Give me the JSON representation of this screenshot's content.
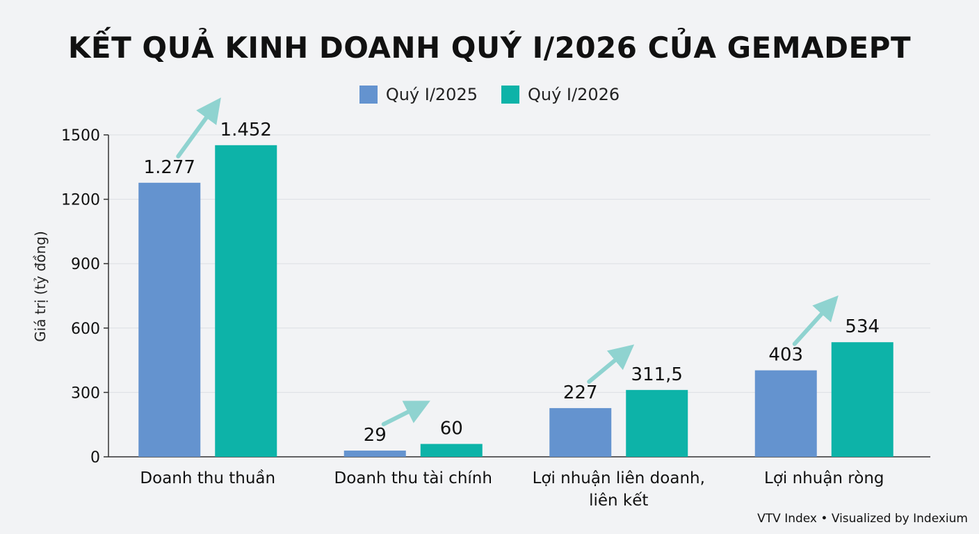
{
  "title": "KẾT QUẢ KINH DOANH QUÝ I/2026 CỦA GEMADEPT",
  "source": "VTV Index • Visualized by Indexium",
  "colors": {
    "q2025": "#6493cf",
    "q2026": "#0db3a8",
    "arrow": "#8fd3d0",
    "grid": "#dcdfe4",
    "axis": "#333333"
  },
  "chart_data": {
    "type": "bar",
    "title": "KẾT QUẢ KINH DOANH QUÝ I/2026 CỦA GEMADEPT",
    "xlabel": "",
    "ylabel": "Giá trị (tỷ đồng)",
    "ylim": [
      0,
      1500
    ],
    "yticks": [
      0,
      300,
      600,
      900,
      1200,
      1500
    ],
    "grid": true,
    "legend_position": "top-center",
    "categories": [
      [
        "Doanh thu thuần"
      ],
      [
        "Doanh thu tài chính"
      ],
      [
        "Lợi nhuận liên doanh,",
        "liên kết"
      ],
      [
        "Lợi nhuận ròng"
      ]
    ],
    "series": [
      {
        "name": "Quý I/2025",
        "values": [
          1277,
          29,
          227,
          403
        ],
        "labels": [
          "1.277",
          "29",
          "227",
          "403"
        ]
      },
      {
        "name": "Quý I/2026",
        "values": [
          1452,
          60,
          311.5,
          534
        ],
        "labels": [
          "1.452",
          "60",
          "311,5",
          "534"
        ]
      }
    ]
  }
}
